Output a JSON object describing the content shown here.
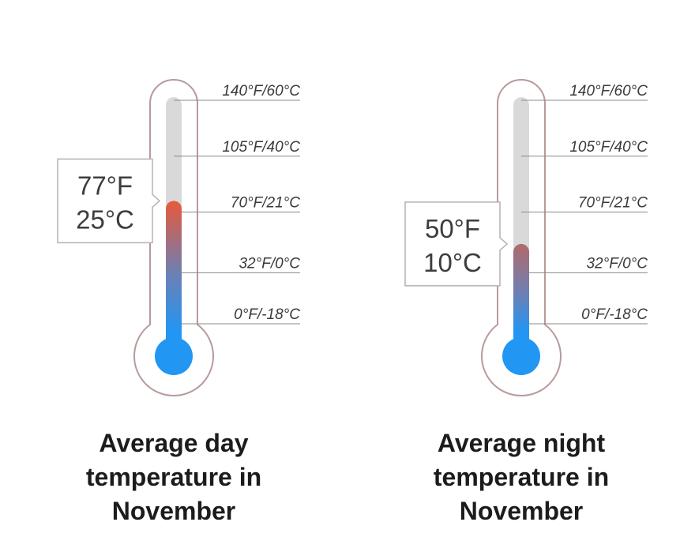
{
  "chart_data": [
    {
      "type": "thermometer",
      "value_f": 77,
      "value_c": 25,
      "readout": [
        "77°F",
        "25°C"
      ],
      "scale_ticks": [
        {
          "f": 140,
          "c": 60,
          "label": "140°F/60°C"
        },
        {
          "f": 105,
          "c": 40,
          "label": "105°F/40°C"
        },
        {
          "f": 70,
          "c": 21,
          "label": "70°F/21°C"
        },
        {
          "f": 32,
          "c": 0,
          "label": "32°F/0°C"
        },
        {
          "f": 0,
          "c": -18,
          "label": "0°F/-18°C"
        }
      ],
      "caption": [
        "Average day",
        "temperature in",
        "November"
      ],
      "fill_top_color": "#e8593a"
    },
    {
      "type": "thermometer",
      "value_f": 50,
      "value_c": 10,
      "readout": [
        "50°F",
        "10°C"
      ],
      "scale_ticks": [
        {
          "f": 140,
          "c": 60,
          "label": "140°F/60°C"
        },
        {
          "f": 105,
          "c": 40,
          "label": "105°F/40°C"
        },
        {
          "f": 70,
          "c": 21,
          "label": "70°F/21°C"
        },
        {
          "f": 32,
          "c": 0,
          "label": "32°F/0°C"
        },
        {
          "f": 0,
          "c": -18,
          "label": "0°F/-18°C"
        }
      ],
      "caption": [
        "Average night",
        "temperature in",
        "November"
      ],
      "fill_top_color": "#b06a6a"
    }
  ],
  "colors": {
    "outline": "#b89a9a",
    "tube_background": "#d9d9d9",
    "bulb_blue": "#2196f3",
    "tick_line": "#8a8a8a",
    "readout_border": "#b8b0b0"
  }
}
